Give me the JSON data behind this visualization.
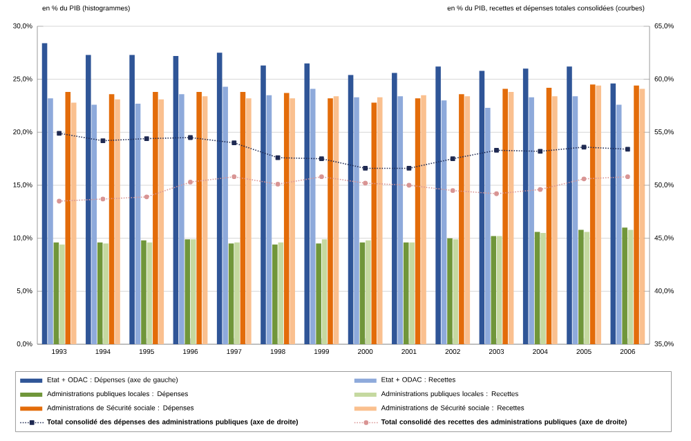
{
  "chart_data": {
    "type": "bar",
    "ylabel": "en % du PIB (histogrammes)",
    "y2label": "en % du PIB, recettes et dépenses totales consolidées (courbes)",
    "categories": [
      "1993",
      "1994",
      "1995",
      "1996",
      "1997",
      "1998",
      "1999",
      "2000",
      "2001",
      "2002",
      "2003",
      "2004",
      "2005",
      "2006"
    ],
    "ylim": [
      0,
      30
    ],
    "yticks": [
      {
        "value": 0,
        "label": "0,0%"
      },
      {
        "value": 5,
        "label": "5,0%"
      },
      {
        "value": 10,
        "label": "10,0%"
      },
      {
        "value": 15,
        "label": "15,0%"
      },
      {
        "value": 20,
        "label": "20,0%"
      },
      {
        "value": 25,
        "label": "25,0%"
      },
      {
        "value": 30,
        "label": "30,0%"
      }
    ],
    "y2lim": [
      35,
      65
    ],
    "y2ticks": [
      {
        "value": 35,
        "label": "35,0%"
      },
      {
        "value": 40,
        "label": "40,0%"
      },
      {
        "value": 45,
        "label": "45,0%"
      },
      {
        "value": 50,
        "label": "50,0%"
      },
      {
        "value": 55,
        "label": "55,0%"
      },
      {
        "value": 60,
        "label": "60,0%"
      },
      {
        "value": 65,
        "label": "65,0%"
      }
    ],
    "grid": "y",
    "legend": "bottom",
    "series": [
      {
        "name": "Etat + ODAC : Dépenses (axe de gauche)",
        "color": "#2f5597",
        "values": [
          28.4,
          27.3,
          27.3,
          27.2,
          27.5,
          26.3,
          26.5,
          25.4,
          25.6,
          26.2,
          25.8,
          26.0,
          26.2,
          24.6
        ]
      },
      {
        "name": "Etat + ODAC : Recettes",
        "color": "#8eaadb",
        "values": [
          23.2,
          22.6,
          22.7,
          23.6,
          24.3,
          23.5,
          24.1,
          23.3,
          23.4,
          23.0,
          22.3,
          23.3,
          23.4,
          22.6
        ]
      },
      {
        "name": "Administrations publiques locales : Dépenses",
        "color": "#70963a",
        "values": [
          9.6,
          9.6,
          9.8,
          9.9,
          9.5,
          9.4,
          9.5,
          9.6,
          9.6,
          10.0,
          10.2,
          10.6,
          10.8,
          11.0
        ]
      },
      {
        "name": "Administrations publiques locales : Recettes",
        "color": "#c5d9a0",
        "values": [
          9.4,
          9.5,
          9.6,
          9.9,
          9.6,
          9.6,
          9.9,
          9.8,
          9.6,
          9.9,
          10.2,
          10.5,
          10.6,
          10.8
        ]
      },
      {
        "name": "Administrations de Sécurité sociale : Dépenses",
        "color": "#e36c0a",
        "values": [
          23.8,
          23.6,
          23.8,
          23.8,
          23.8,
          23.7,
          23.2,
          22.8,
          23.2,
          23.6,
          24.1,
          24.2,
          24.5,
          24.4
        ]
      },
      {
        "name": "Administrations de Sécurité sociale : Recettes",
        "color": "#fac08f",
        "values": [
          22.8,
          23.1,
          23.1,
          23.4,
          23.2,
          23.2,
          23.4,
          23.3,
          23.5,
          23.4,
          23.8,
          23.4,
          24.4,
          24.1
        ]
      },
      {
        "name": "Total consolidé des dépenses des administrations publiques (axe de droite)",
        "type": "line",
        "axis": "y2",
        "color": "#1f2a52",
        "marker": "square",
        "line_style": "dotted",
        "values": [
          54.9,
          54.2,
          54.4,
          54.5,
          54.0,
          52.6,
          52.5,
          51.6,
          51.6,
          52.5,
          53.3,
          53.2,
          53.6,
          53.4
        ]
      },
      {
        "name": "Total consolidé des recettes des administrations publiques (axe de droite)",
        "type": "line",
        "axis": "y2",
        "color": "#d99594",
        "marker": "circle",
        "line_style": "dotted",
        "values": [
          48.5,
          48.7,
          48.9,
          50.3,
          50.8,
          50.1,
          50.8,
          50.2,
          50.0,
          49.5,
          49.2,
          49.6,
          50.6,
          50.8
        ]
      }
    ]
  }
}
